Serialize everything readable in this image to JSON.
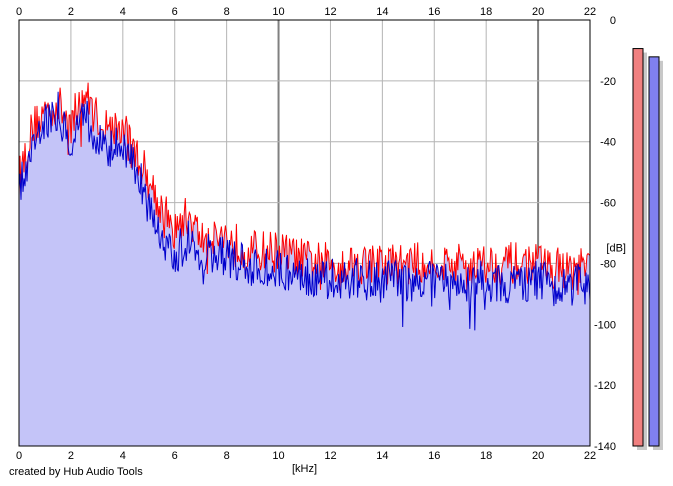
{
  "credit": "created by Hub Audio Tools",
  "meters": {
    "left_color": "#f08080",
    "right_color": "#8080f0",
    "left_level": 0.96,
    "right_level": 0.94
  },
  "chart_data": {
    "type": "area",
    "xlabel": "[kHz]",
    "ylabel": "[dB]",
    "xlim": [
      0,
      22
    ],
    "ylim": [
      -140,
      0
    ],
    "grid": true,
    "x_ticks": [
      "0",
      "2",
      "4",
      "6",
      "8",
      "10",
      "12",
      "14",
      "16",
      "18",
      "20",
      "22"
    ],
    "y_ticks": [
      "0",
      "-20",
      "-40",
      "-60",
      "-80",
      "-100",
      "-120",
      "-140"
    ],
    "fill_color": "#c4c4f8",
    "series": [
      {
        "color": "#ff0000",
        "x": [
          0,
          0.5,
          1,
          1.5,
          2,
          2.5,
          3,
          3.5,
          4,
          4.5,
          5,
          5.5,
          6,
          6.5,
          7,
          7.5,
          8,
          8.5,
          9,
          9.5,
          10,
          11,
          12,
          13,
          14,
          15,
          16,
          17,
          18,
          19,
          20,
          21,
          22
        ],
        "y": [
          -52,
          -36,
          -30,
          -28,
          -34,
          -24,
          -32,
          -36,
          -36,
          -44,
          -52,
          -62,
          -70,
          -64,
          -72,
          -70,
          -72,
          -74,
          -76,
          -76,
          -76,
          -79,
          -80,
          -80,
          -80,
          -80,
          -80,
          -80,
          -80,
          -80,
          -80,
          -82,
          -82
        ]
      },
      {
        "color": "#0000cc",
        "x": [
          0,
          0.5,
          1,
          1.5,
          2,
          2.5,
          3,
          3.5,
          4,
          4.5,
          5,
          5.5,
          6,
          6.5,
          7,
          7.5,
          8,
          8.5,
          9,
          9.5,
          10,
          11,
          12,
          13,
          14,
          15,
          16,
          17,
          18,
          19,
          20,
          21,
          22
        ],
        "y": [
          -56,
          -40,
          -33,
          -30,
          -40,
          -30,
          -40,
          -42,
          -42,
          -50,
          -58,
          -70,
          -78,
          -72,
          -78,
          -76,
          -78,
          -80,
          -82,
          -82,
          -82,
          -84,
          -85,
          -85,
          -86,
          -86,
          -86,
          -86,
          -86,
          -86,
          -86,
          -88,
          -86
        ]
      }
    ]
  }
}
